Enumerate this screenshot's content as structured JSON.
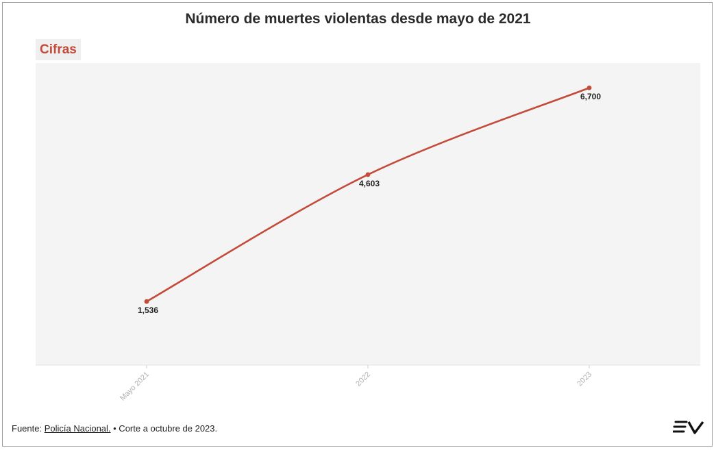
{
  "title": "Número de muertes violentas desde mayo de 2021",
  "tag_label": "Cifras",
  "footer": {
    "source_prefix": "Fuente: ",
    "source_link": "Policía Nacional.",
    "note": " • Corte a octubre de 2023."
  },
  "logo_icon": "ev-logo-icon",
  "colors": {
    "line": "#c44a3a",
    "plot_background": "#f4f4f4",
    "tag_text": "#c44a3a"
  },
  "chart_data": {
    "type": "line",
    "title": "Número de muertes violentas desde mayo de 2021",
    "categories": [
      "Mayo 2021",
      "2022",
      "2023"
    ],
    "series": [
      {
        "values": [
          1536,
          4603,
          6700
        ],
        "labels": [
          "1,536",
          "4,603",
          "6,700"
        ]
      }
    ],
    "ylim": [
      0,
      7300
    ],
    "grid": false,
    "legend": "none"
  }
}
